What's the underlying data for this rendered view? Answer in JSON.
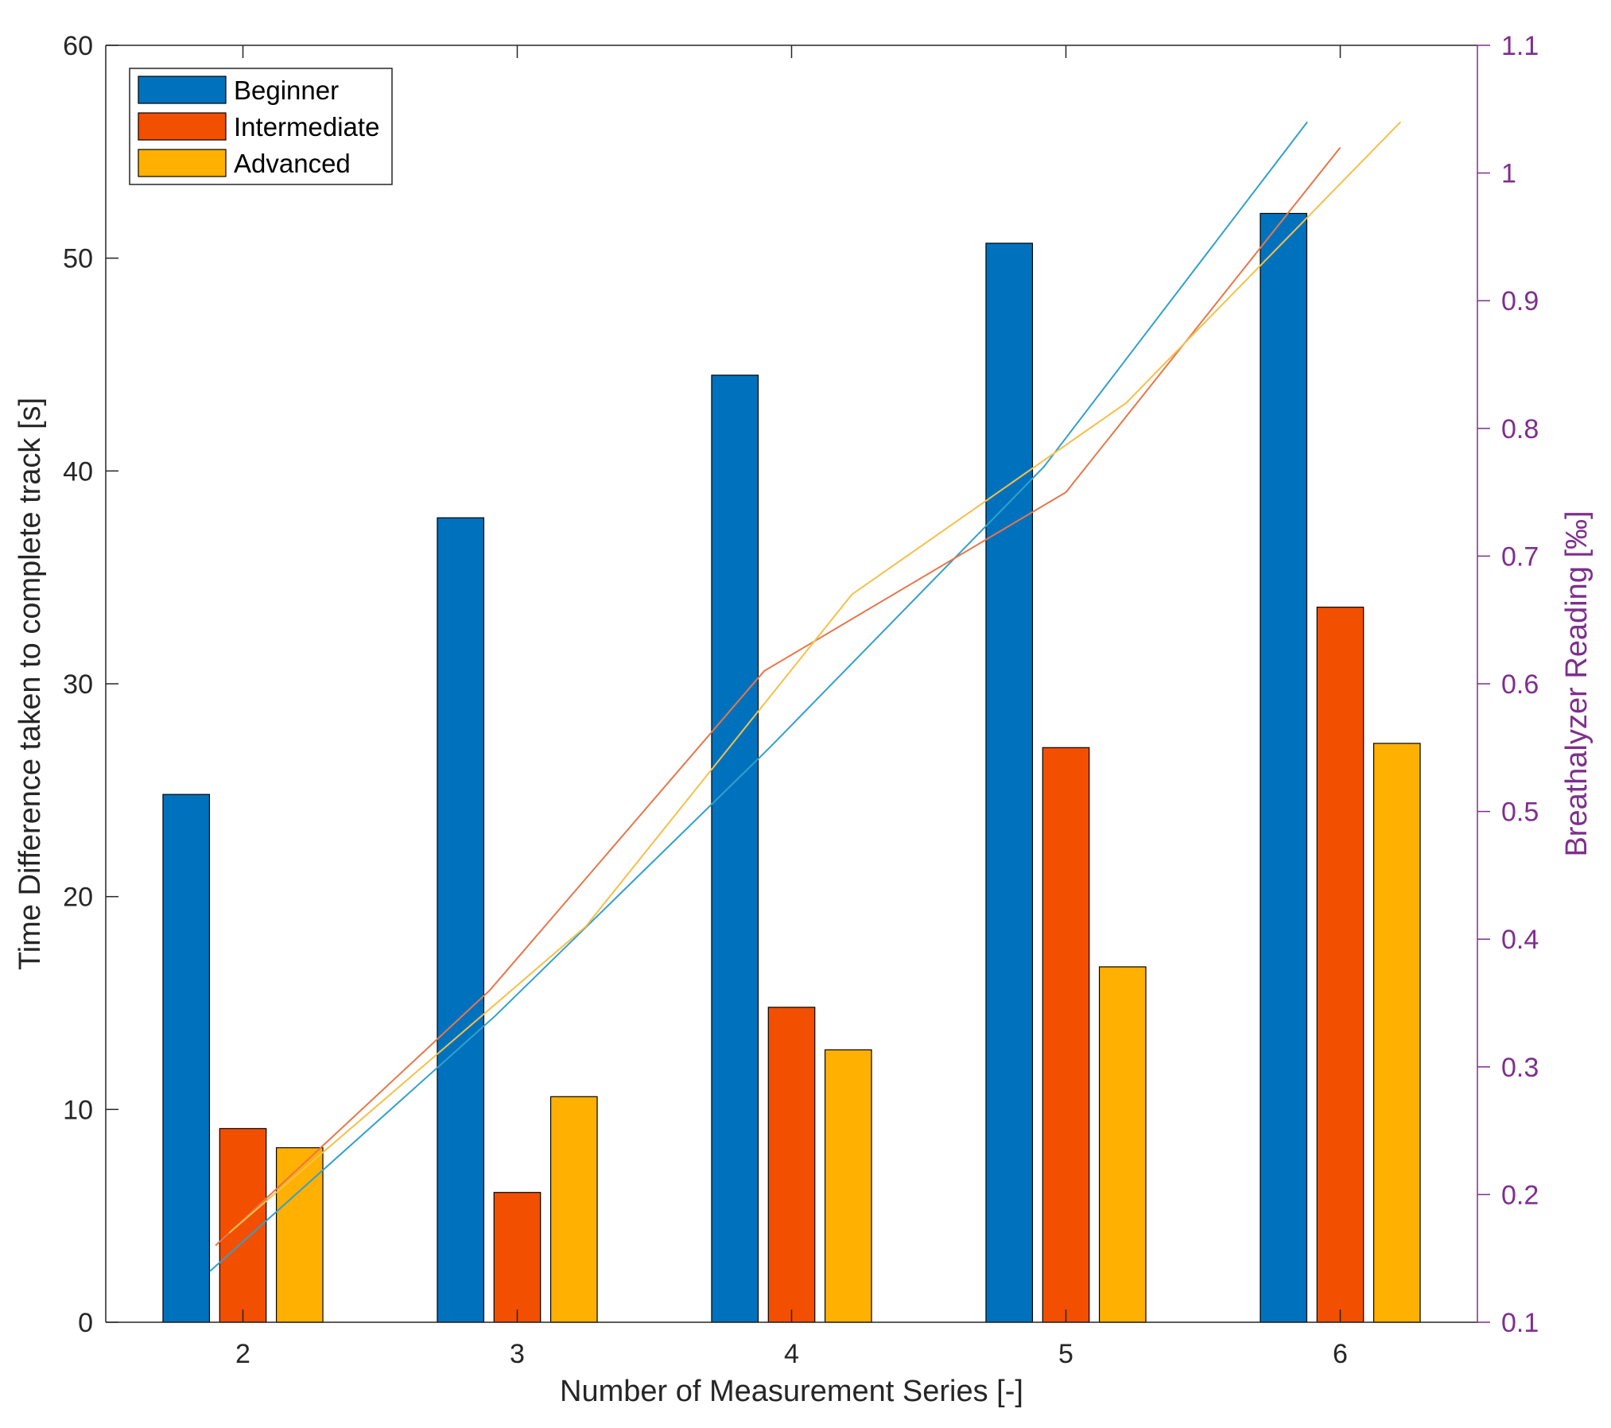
{
  "chart_data": {
    "type": "bar",
    "categories": [
      "2",
      "3",
      "4",
      "5",
      "6"
    ],
    "series": [
      {
        "name": "Beginner",
        "values": [
          24.8,
          37.8,
          44.5,
          50.7,
          52.1
        ],
        "color": "#0072bd"
      },
      {
        "name": "Intermediate",
        "values": [
          9.1,
          6.1,
          14.8,
          27.0,
          33.6
        ],
        "color": "#f24f00"
      },
      {
        "name": "Advanced",
        "values": [
          8.2,
          10.6,
          12.8,
          16.7,
          27.2
        ],
        "color": "#ffb000"
      }
    ],
    "lines": [
      {
        "series": "Beginner",
        "axis": "right",
        "color": "#33a0cc",
        "x": [
          1.88,
          2.92,
          3.92,
          4.92,
          5.88
        ],
        "y": [
          0.14,
          0.34,
          0.55,
          0.77,
          1.04
        ]
      },
      {
        "series": "Intermediate",
        "axis": "right",
        "color": "#e8764a",
        "x": [
          1.9,
          2.9,
          3.9,
          5.0,
          6.0
        ],
        "y": [
          0.16,
          0.36,
          0.61,
          0.75,
          1.02
        ]
      },
      {
        "series": "Advanced",
        "axis": "right",
        "color": "#f5c04a",
        "x": [
          1.95,
          3.25,
          4.22,
          5.22,
          6.22
        ],
        "y": [
          0.17,
          0.41,
          0.67,
          0.82,
          1.04
        ]
      }
    ],
    "title": "",
    "xlabel": "Number of Measurement Series [-]",
    "ylabel": "Time Difference taken to complete track [s]",
    "ylabel_right": "Breathalyzer Reading [‰]",
    "xlim": [
      1.5,
      6.5
    ],
    "ylim": [
      0,
      60
    ],
    "ylim_right": [
      0.1,
      1.1
    ],
    "yticks": [
      0,
      10,
      20,
      30,
      40,
      50,
      60
    ],
    "yticks_right": [
      0.1,
      0.2,
      0.3,
      0.4,
      0.5,
      0.6,
      0.7,
      0.8,
      0.9,
      1,
      1.1
    ],
    "grid": false,
    "legend_position": "top-left"
  }
}
